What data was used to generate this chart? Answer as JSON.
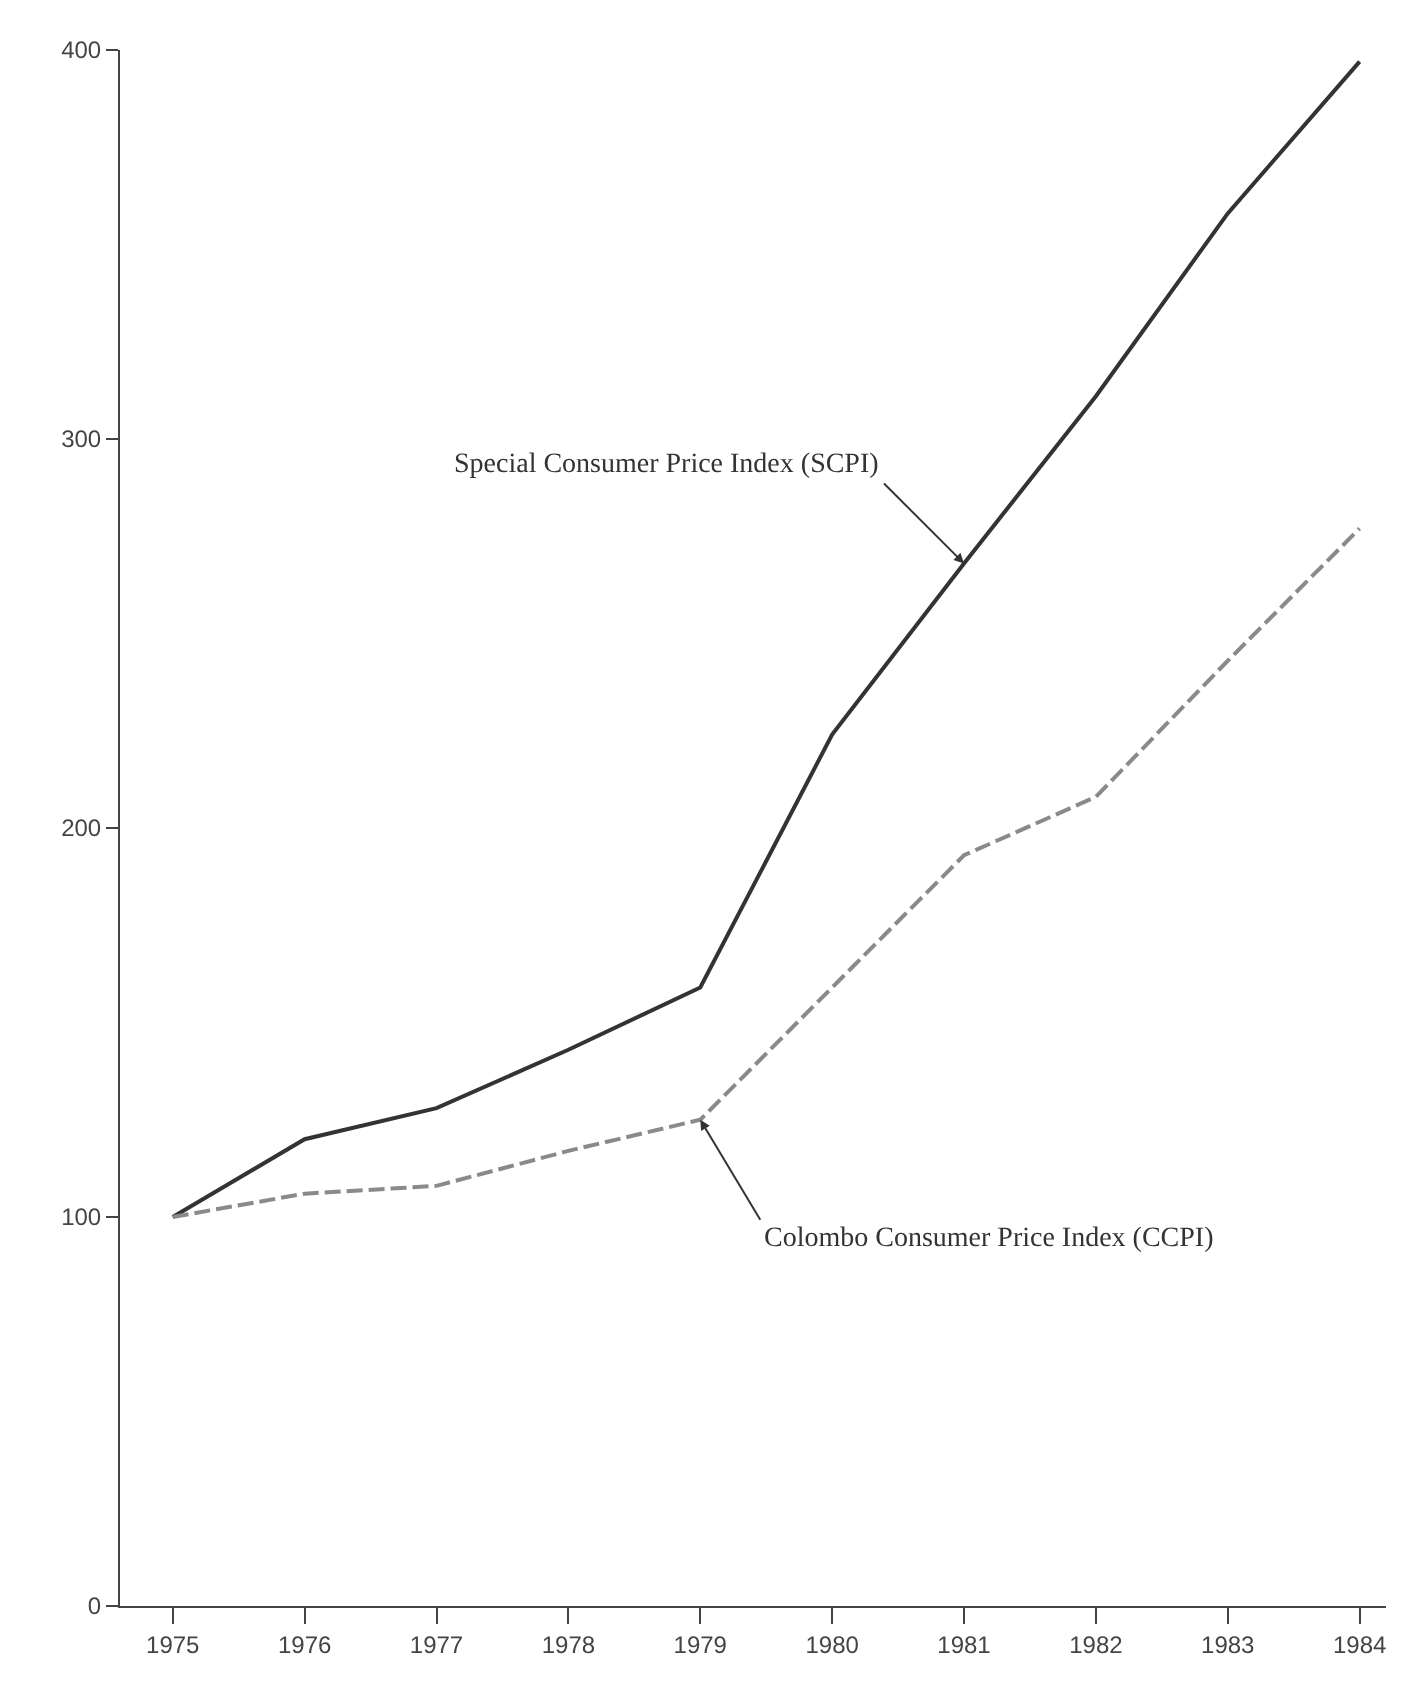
{
  "chart_data": {
    "type": "line",
    "x": [
      1975,
      1976,
      1977,
      1978,
      1979,
      1980,
      1981,
      1982,
      1983,
      1984
    ],
    "series": [
      {
        "color": "#333333",
        "line_style": "solid",
        "values": [
          100,
          120,
          128,
          143,
          159,
          224,
          268,
          311,
          358,
          397
        ]
      },
      {
        "color": "#8a8a8a",
        "line_style": "dashed",
        "values": [
          100,
          106,
          108,
          117,
          125,
          159,
          193,
          208,
          243,
          277
        ]
      }
    ],
    "annotations": [
      {
        "text": "Special Consumer Price Index (SCPI)",
        "x": 1981,
        "y": 268
      },
      {
        "text": "Colombo Consumer Price Index (CCPI)",
        "x": 1979,
        "y": 125
      }
    ],
    "xlim": [
      1974.6,
      1984.2
    ],
    "xticks": [
      1975,
      1976,
      1977,
      1978,
      1979,
      1980,
      1981,
      1982,
      1983,
      1984
    ],
    "ylim": [
      0,
      400
    ],
    "yticks": [
      0,
      100,
      200,
      300,
      400
    ],
    "legend": false,
    "marker": "none"
  }
}
